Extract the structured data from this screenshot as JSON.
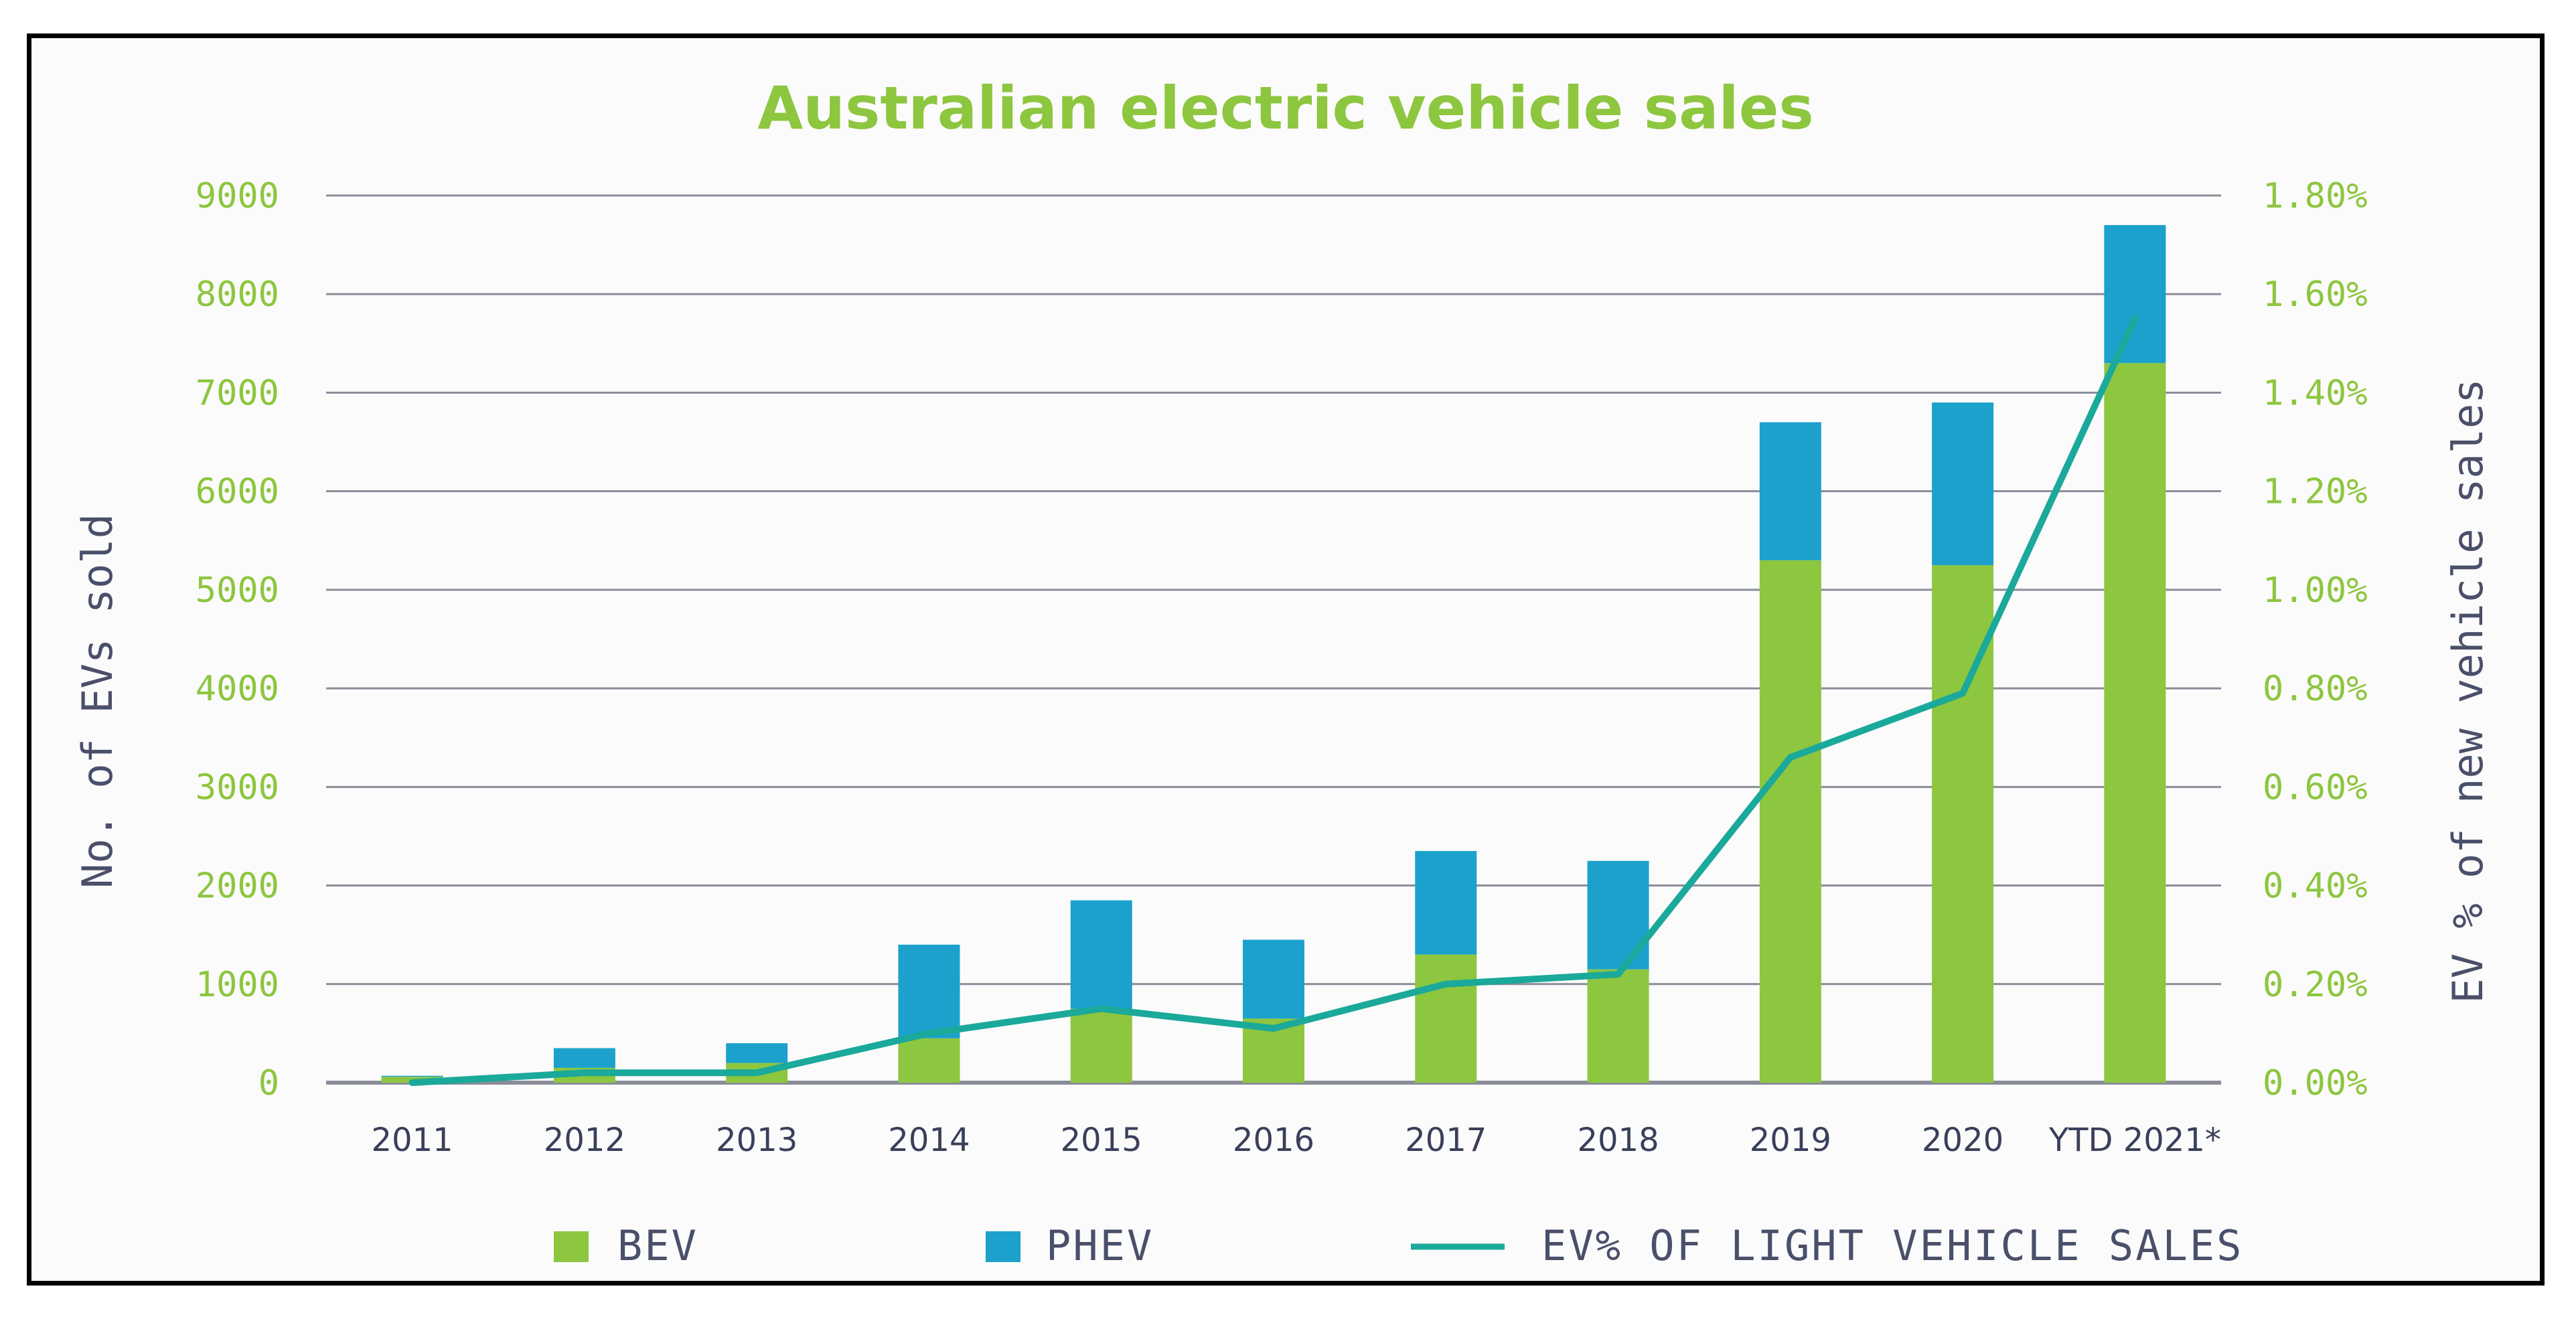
{
  "chart_data": {
    "type": "bar",
    "stacked": true,
    "title": "Australian electric vehicle sales",
    "categories": [
      "2011",
      "2012",
      "2013",
      "2014",
      "2015",
      "2016",
      "2017",
      "2018",
      "2019",
      "2020",
      "YTD 2021*"
    ],
    "series": [
      {
        "name": "BEV",
        "type": "bar",
        "axis": "left",
        "color": "#8dc63f",
        "values": [
          60,
          150,
          200,
          450,
          750,
          650,
          1300,
          1150,
          5300,
          5250,
          7300
        ]
      },
      {
        "name": "PHEV",
        "type": "bar",
        "axis": "left",
        "color": "#1ba1cc",
        "values": [
          10,
          200,
          200,
          950,
          1100,
          800,
          1050,
          1100,
          1400,
          1650,
          1400
        ]
      },
      {
        "name": "EV% OF LIGHT VEHICLE SALES",
        "type": "line",
        "axis": "right",
        "color": "#1aa99a",
        "values": [
          0.0,
          0.02,
          0.02,
          0.1,
          0.15,
          0.11,
          0.2,
          0.22,
          0.66,
          0.79,
          1.55
        ]
      }
    ],
    "y_left": {
      "label": "No. of EVs sold",
      "ylim": [
        0,
        9000
      ],
      "ticks": [
        "0",
        "1000",
        "2000",
        "3000",
        "4000",
        "5000",
        "6000",
        "7000",
        "8000",
        "9000"
      ]
    },
    "y_right": {
      "label": "EV % of new vehicle sales",
      "ylim": [
        0,
        1.8
      ],
      "ticks": [
        "0.00%",
        "0.20%",
        "0.40%",
        "0.60%",
        "0.80%",
        "1.00%",
        "1.20%",
        "1.40%",
        "1.60%",
        "1.80%"
      ]
    },
    "grid": true,
    "legend_position": "bottom",
    "colors": {
      "title": "#8dc63f",
      "tick_label": "#8dc63f",
      "axis_title": "#4a4f6a",
      "category_label": "#3a3f5a",
      "legend_text": "#4a4f6a",
      "grid": "#8a8d98"
    }
  }
}
